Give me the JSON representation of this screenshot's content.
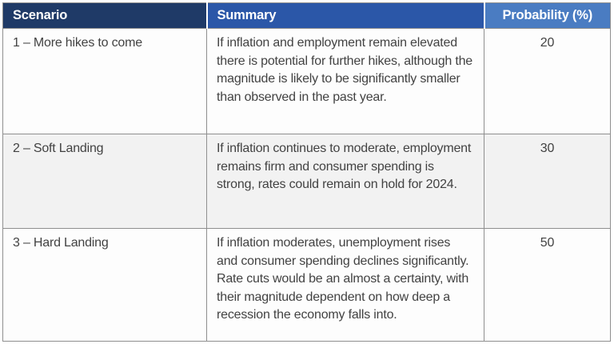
{
  "table": {
    "columns": [
      {
        "label": "Scenario"
      },
      {
        "label": "Summary"
      },
      {
        "label": "Probability (%)"
      }
    ],
    "rows": [
      {
        "scenario": "1 – More hikes to come",
        "summary": "If inflation and employment remain elevated there is potential for further hikes, although the magnitude is likely to be significantly smaller than observed in the past year.",
        "probability": "20"
      },
      {
        "scenario": "2 – Soft Landing",
        "summary": "If inflation continues to moderate, employment remains firm and consumer spending is strong, rates could remain on hold for 2024.",
        "probability": "30"
      },
      {
        "scenario": "3 – Hard Landing",
        "summary": "If inflation moderates, unemployment rises and consumer spending declines significantly. Rate cuts would be an almost a certainty, with their magnitude dependent on how deep a recession the economy falls into.",
        "probability": "50"
      }
    ],
    "colors": {
      "header_scenario_bg": "#1f3a67",
      "header_summary_bg": "#2b57a8",
      "header_probability_bg": "#4a7cc2",
      "header_text": "#ffffff",
      "body_text": "#424242",
      "row_alt_bg": "#f2f2f2",
      "row_bg": "#fdfdfd",
      "border": "#8f8f8f"
    }
  }
}
